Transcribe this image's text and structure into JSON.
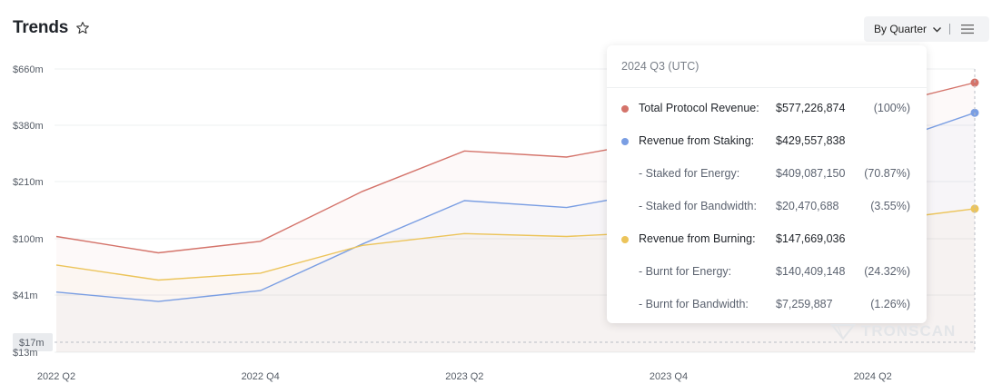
{
  "header": {
    "title": "Trends",
    "period_label": "By Quarter"
  },
  "icons": {
    "favorite": "star-outline-icon",
    "dropdown": "chevron-down-icon",
    "menu": "hamburger-menu-icon"
  },
  "watermark": {
    "text": "TRONSCAN"
  },
  "tooltip": {
    "title": "2024 Q3 (UTC)",
    "rows": [
      {
        "label": "Total Protocol Revenue:",
        "value": "$577,226,874",
        "pct": "(100%)",
        "color": "#d4736a",
        "dot": true,
        "sub": false
      },
      {
        "label": "Revenue from Staking:",
        "value": "$429,557,838",
        "pct": "",
        "color": "#7a9ee3",
        "dot": true,
        "sub": false
      },
      {
        "label": "- Staked for Energy:",
        "value": "$409,087,150",
        "pct": "(70.87%)",
        "color": "",
        "dot": false,
        "sub": true
      },
      {
        "label": "- Staked for Bandwidth:",
        "value": "$20,470,688",
        "pct": "(3.55%)",
        "color": "",
        "dot": false,
        "sub": true
      },
      {
        "label": "Revenue from Burning:",
        "value": "$147,669,036",
        "pct": "",
        "color": "#ecc45a",
        "dot": true,
        "sub": false
      },
      {
        "label": "- Burnt for Energy:",
        "value": "$140,409,148",
        "pct": "(24.32%)",
        "color": "",
        "dot": false,
        "sub": true
      },
      {
        "label": "- Burnt for Bandwidth:",
        "value": "$7,259,887",
        "pct": "(1.26%)",
        "color": "",
        "dot": false,
        "sub": true
      }
    ]
  },
  "chart_data": {
    "type": "line",
    "title": "Trends",
    "y_scale": "log",
    "y_ticks": [
      {
        "value": 660000000,
        "label": "$660m"
      },
      {
        "value": 380000000,
        "label": "$380m"
      },
      {
        "value": 210000000,
        "label": "$210m"
      },
      {
        "value": 100000000,
        "label": "$100m"
      },
      {
        "value": 41000000,
        "label": "$41m"
      },
      {
        "value": 13000000,
        "label": "$13m"
      }
    ],
    "crosshair_label": "$17m",
    "x": [
      "2022 Q2",
      "2022 Q3",
      "2022 Q4",
      "2023 Q1",
      "2023 Q2",
      "2023 Q3",
      "2023 Q4",
      "2024 Q1",
      "2024 Q2",
      "2024 Q3"
    ],
    "x_tick_labels": [
      "2022 Q2",
      "2022 Q4",
      "2023 Q2",
      "2023 Q4",
      "2024 Q2"
    ],
    "series": [
      {
        "name": "Total Protocol Revenue",
        "color": "#d4736a",
        "values": [
          103000000,
          80000000,
          96000000,
          185000000,
          290000000,
          272000000,
          330000000,
          390000000,
          450000000,
          577226874
        ]
      },
      {
        "name": "Revenue from Staking",
        "color": "#7a9ee3",
        "values": [
          43000000,
          36000000,
          44000000,
          92000000,
          164000000,
          150000000,
          190000000,
          240000000,
          300000000,
          429557838
        ]
      },
      {
        "name": "Revenue from Burning",
        "color": "#ecc45a",
        "values": [
          66000000,
          52000000,
          58000000,
          90000000,
          107000000,
          103000000,
          110000000,
          115000000,
          125000000,
          147669036
        ]
      }
    ]
  }
}
